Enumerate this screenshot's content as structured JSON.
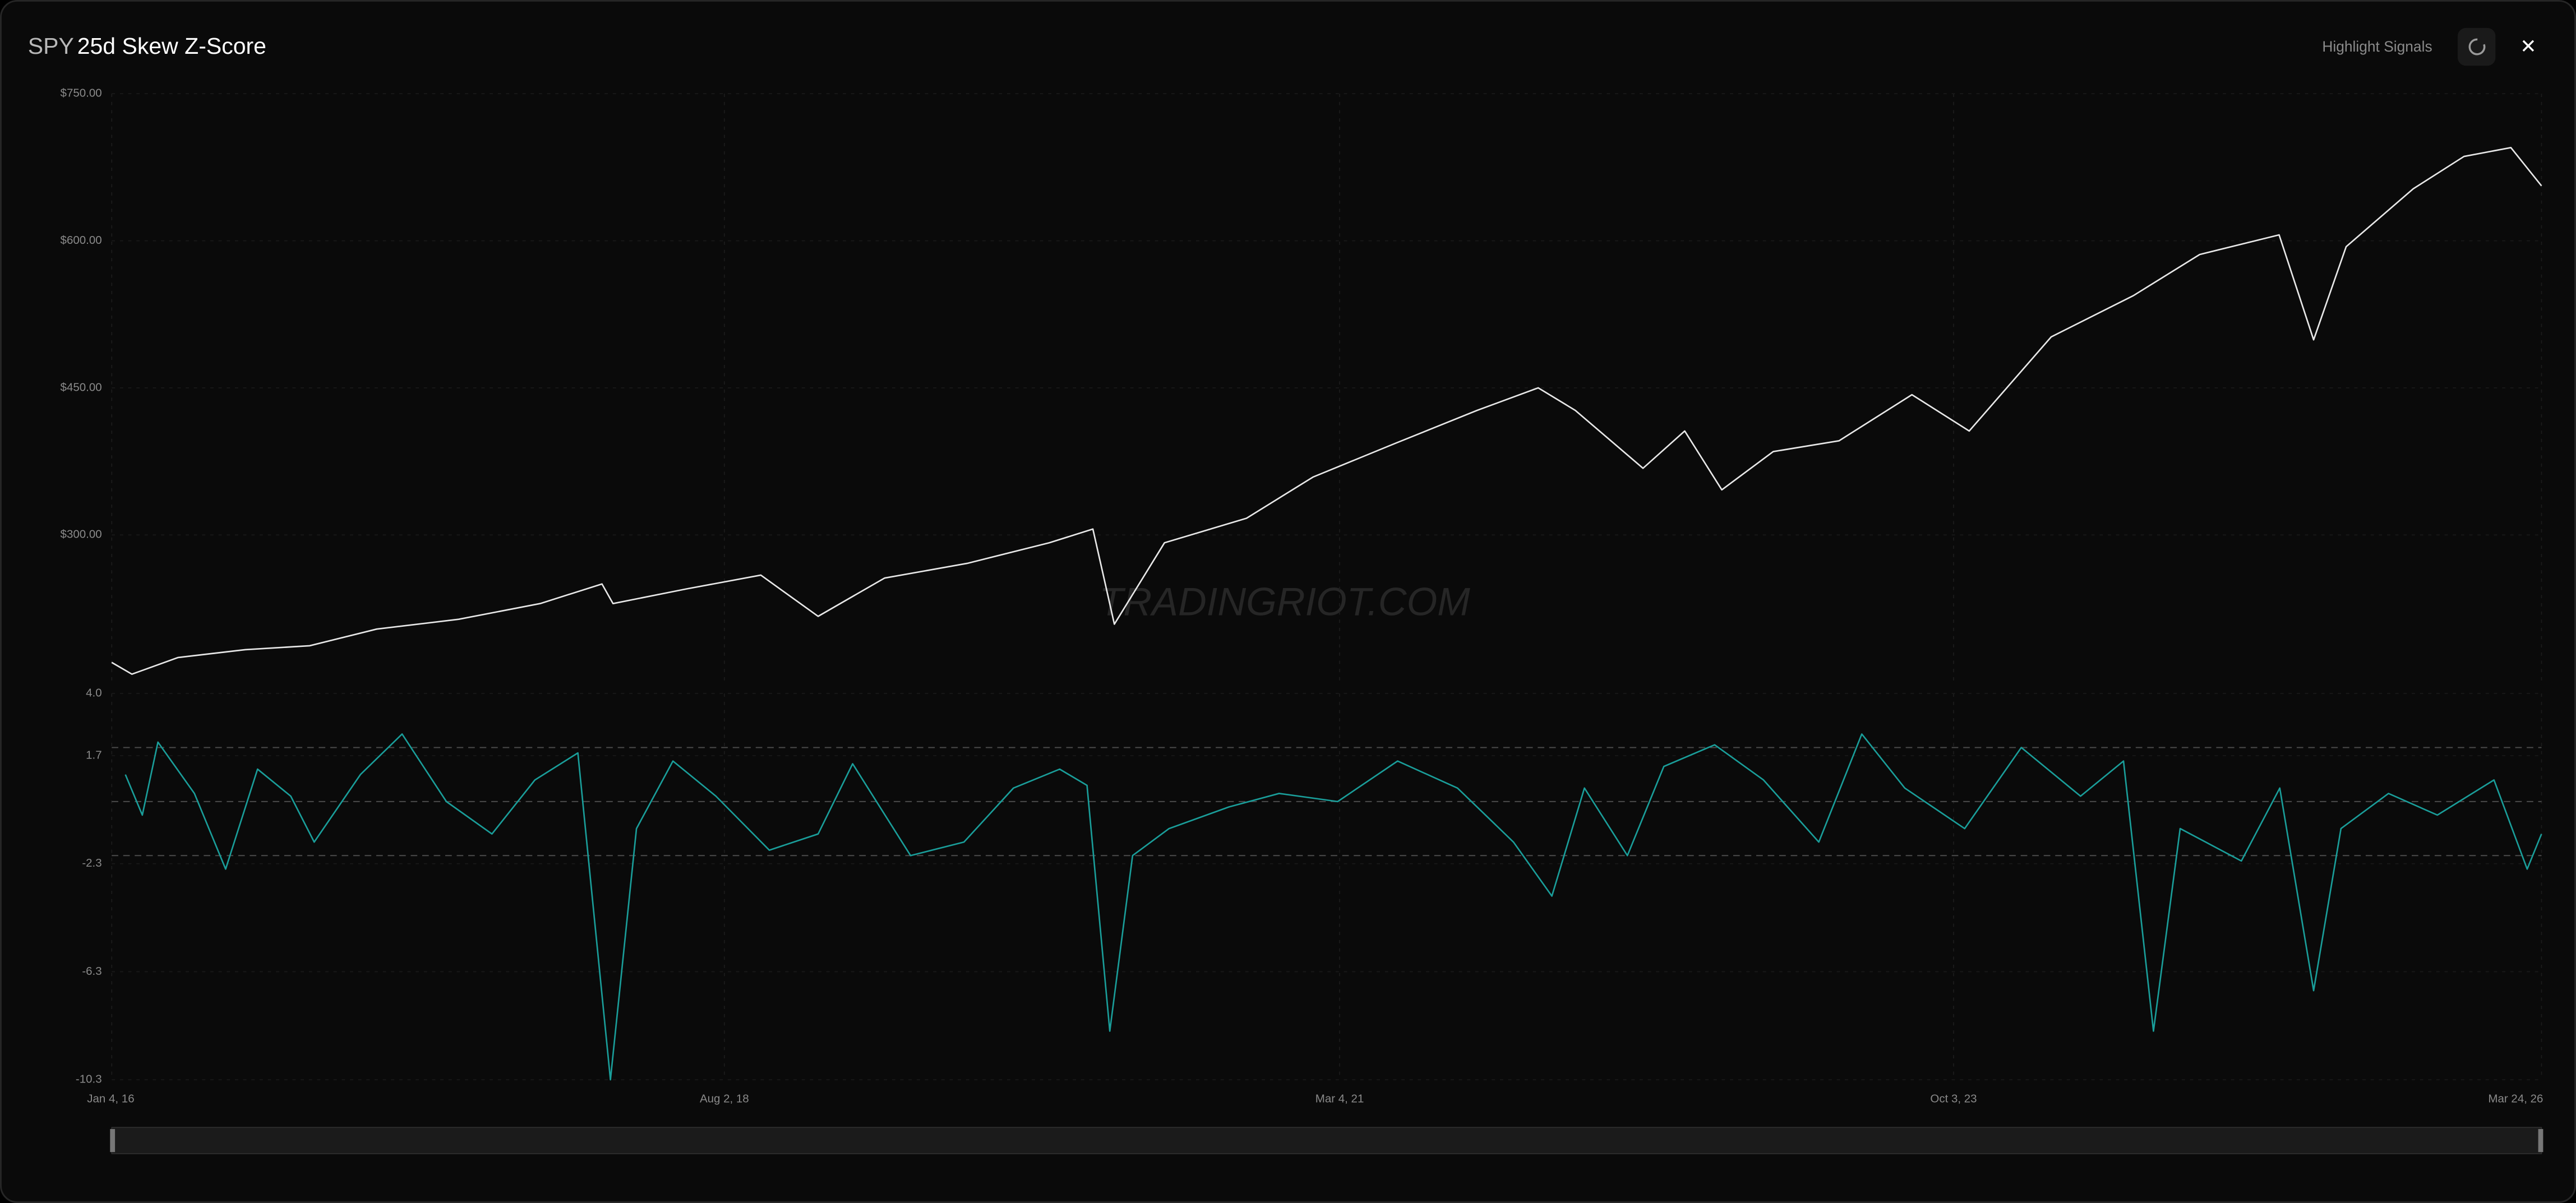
{
  "header": {
    "symbol": "SPY",
    "title": "25d Skew Z-Score",
    "highlight": "Highlight Signals",
    "close": "✕"
  },
  "watermark": "TRADINGRIOT.COM",
  "chart_data": [
    {
      "type": "line",
      "color": "#e8e8e8",
      "x": [
        "2016-01-04",
        "2016-02-04",
        "2016-04-15",
        "2016-07-27",
        "2016-11-03",
        "2017-02-14",
        "2017-06-20",
        "2017-10-23",
        "2018-01-26",
        "2018-02-12",
        "2018-06-05",
        "2018-09-27",
        "2018-12-24",
        "2019-04-05",
        "2019-08-10",
        "2019-12-14",
        "2020-02-19",
        "2020-03-23",
        "2020-06-08",
        "2020-10-12",
        "2021-01-22",
        "2021-05-27",
        "2021-10-01",
        "2022-01-03",
        "2022-03-01",
        "2022-06-13",
        "2022-08-16",
        "2022-10-12",
        "2022-12-30",
        "2023-04-10",
        "2023-07-31",
        "2023-10-27",
        "2024-03-01",
        "2024-07-05",
        "2024-10-15",
        "2025-02-14",
        "2025-04-08",
        "2025-05-28",
        "2025-09-08",
        "2025-11-25",
        "2026-02-05",
        "2026-03-24"
      ],
      "values": [
        170,
        158,
        175,
        183,
        187,
        204,
        214,
        230,
        250,
        230,
        245,
        259,
        217,
        256,
        271,
        292,
        306,
        209,
        292,
        317,
        359,
        393,
        427,
        450,
        427,
        368,
        406,
        346,
        385,
        396,
        443,
        406,
        502,
        544,
        586,
        606,
        499,
        594,
        653,
        686,
        695,
        656
      ],
      "xlim": [
        "2016-01-04",
        "2026-03-24"
      ],
      "ylim": [
        150,
        750
      ],
      "yticks": [
        {
          "value": 750,
          "label": "$750.00"
        },
        {
          "value": 600,
          "label": "$600.00"
        },
        {
          "value": 450,
          "label": "$450.00"
        },
        {
          "value": 300,
          "label": "$300.00"
        }
      ]
    },
    {
      "type": "line",
      "color": "#1a9e9a",
      "x": [
        "2016-01-25",
        "2016-02-20",
        "2016-03-15",
        "2016-05-10",
        "2016-06-27",
        "2016-08-15",
        "2016-10-05",
        "2016-11-10",
        "2017-01-20",
        "2017-03-25",
        "2017-06-01",
        "2017-08-10",
        "2017-10-15",
        "2017-12-20",
        "2018-02-08",
        "2018-03-20",
        "2018-05-15",
        "2018-07-20",
        "2018-10-10",
        "2018-12-24",
        "2019-02-15",
        "2019-05-15",
        "2019-08-05",
        "2019-10-20",
        "2019-12-30",
        "2020-02-10",
        "2020-03-16",
        "2020-04-20",
        "2020-06-15",
        "2020-09-15",
        "2020-12-01",
        "2021-03-01",
        "2021-06-01",
        "2021-09-01",
        "2021-11-26",
        "2022-01-24",
        "2022-03-15",
        "2022-05-20",
        "2022-07-15",
        "2022-10-01",
        "2022-12-15",
        "2023-03-10",
        "2023-05-15",
        "2023-07-20",
        "2023-10-20",
        "2024-01-15",
        "2024-04-15",
        "2024-06-20",
        "2024-08-05",
        "2024-09-15",
        "2024-12-18",
        "2025-02-15",
        "2025-04-08",
        "2025-05-20",
        "2025-08-01",
        "2025-10-15",
        "2026-01-10",
        "2026-03-02",
        "2026-03-24"
      ],
      "values": [
        1.0,
        -0.5,
        2.2,
        0.3,
        -2.5,
        1.2,
        0.2,
        -1.5,
        1.0,
        2.5,
        0.0,
        -1.2,
        0.8,
        1.8,
        -10.3,
        -1.0,
        1.5,
        0.2,
        -1.8,
        -1.2,
        1.4,
        -2.0,
        -1.5,
        0.5,
        1.2,
        0.6,
        -8.5,
        -2.0,
        -1.0,
        -0.2,
        0.3,
        0.0,
        1.5,
        0.5,
        -1.5,
        -3.5,
        0.5,
        -2.0,
        1.3,
        2.1,
        0.8,
        -1.5,
        2.5,
        0.5,
        -1.0,
        2.0,
        0.2,
        1.5,
        -8.5,
        -1.0,
        -2.2,
        0.5,
        -7.0,
        -1.0,
        0.3,
        -0.5,
        0.8,
        -2.5,
        -1.2
      ],
      "xlim": [
        "2016-01-04",
        "2026-03-24"
      ],
      "xticks": [
        {
          "value": "2016-01-04",
          "label": "Jan 4, 16"
        },
        {
          "value": "2018-08-02",
          "label": "Aug 2, 18"
        },
        {
          "value": "2021-03-04",
          "label": "Mar 4, 21"
        },
        {
          "value": "2023-10-03",
          "label": "Oct 3, 23"
        },
        {
          "value": "2026-03-24",
          "label": "Mar 24, 26"
        }
      ],
      "ylim": [
        -10.3,
        4.0
      ],
      "yticks": [
        {
          "value": 4.0,
          "label": "4.0"
        },
        1.7,
        -2.3,
        -6.3,
        -10.3
      ],
      "thresholds": [
        2,
        0,
        -2
      ]
    }
  ]
}
